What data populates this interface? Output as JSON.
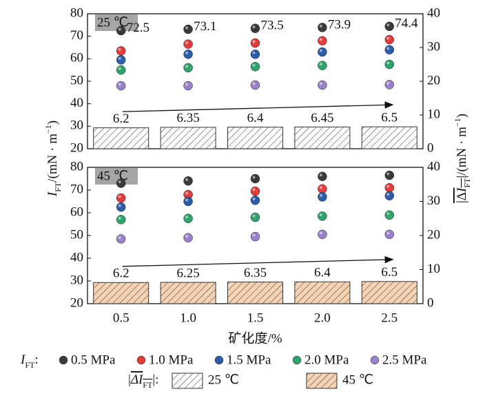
{
  "axes": {
    "y_label": [
      "I",
      "FT",
      "/(mN · m",
      "−1",
      ")"
    ],
    "y2_label": [
      "|Δ",
      "I",
      "FT",
      "|/(mN · m",
      "−1",
      ")"
    ]
  },
  "legend": {
    "scatter_prefix": [
      "I",
      "FT",
      ":"
    ],
    "bar_prefix": [
      "|",
      "ΔI",
      "FT",
      "|:"
    ]
  },
  "chart_data": [
    {
      "type": "combo",
      "panel_label": "25 ℃",
      "ylim": [
        20,
        80
      ],
      "yticks": [
        20,
        30,
        40,
        50,
        60,
        70,
        80
      ],
      "y2lim": [
        0,
        40
      ],
      "y2ticks": [
        0,
        10,
        20,
        30,
        40
      ],
      "series": [
        {
          "name": "25 ℃",
          "type": "bar",
          "axis": "y2",
          "color": "#ffffff",
          "values": [
            6.2,
            6.35,
            6.4,
            6.45,
            6.5
          ]
        },
        {
          "name": "0.5 MPa",
          "type": "scatter",
          "color": "#3a3a3a",
          "show_labels": true,
          "values": [
            72.5,
            73.1,
            73.5,
            73.9,
            74.4
          ]
        },
        {
          "name": "1.0 MPa",
          "type": "scatter",
          "color": "#e03c3c",
          "values": [
            63.5,
            66.5,
            67,
            68,
            68.5
          ]
        },
        {
          "name": "1.5 MPa",
          "type": "scatter",
          "color": "#2c5ca8",
          "values": [
            59.5,
            62,
            62,
            63,
            64
          ]
        },
        {
          "name": "2.0 MPa",
          "type": "scatter",
          "color": "#2fa36b",
          "values": [
            55,
            56,
            56.5,
            57,
            57.5
          ]
        },
        {
          "name": "2.5 MPa",
          "type": "scatter",
          "color": "#9a80c8",
          "values": [
            48,
            48,
            48.3,
            48.3,
            48.5
          ]
        }
      ]
    },
    {
      "type": "combo",
      "panel_label": "45 ℃",
      "categories": [
        "0.5",
        "1.0",
        "1.5",
        "2.0",
        "2.5"
      ],
      "x_label": "矿化度/%",
      "ylim": [
        20,
        80
      ],
      "yticks": [
        20,
        30,
        40,
        50,
        60,
        70,
        80
      ],
      "y2lim": [
        0,
        40
      ],
      "y2ticks": [
        0,
        10,
        20,
        30,
        40
      ],
      "series": [
        {
          "name": "45 ℃",
          "type": "bar",
          "axis": "y2",
          "color": "#f7d2b3",
          "values": [
            6.2,
            6.25,
            6.35,
            6.4,
            6.5
          ]
        },
        {
          "type": "scatter",
          "color": "#3a3a3a",
          "values": [
            73,
            74,
            75,
            76,
            76.5
          ]
        },
        {
          "type": "scatter",
          "color": "#e03c3c",
          "values": [
            66.5,
            68,
            69.5,
            70.5,
            71
          ]
        },
        {
          "type": "scatter",
          "color": "#2c5ca8",
          "values": [
            62.5,
            65,
            65.5,
            67,
            67.5
          ]
        },
        {
          "type": "scatter",
          "color": "#2fa36b",
          "values": [
            57,
            57.5,
            58,
            58.5,
            59
          ]
        },
        {
          "type": "scatter",
          "color": "#9a80c8",
          "values": [
            48.5,
            49,
            49.5,
            50.5,
            50.5
          ]
        }
      ]
    }
  ]
}
